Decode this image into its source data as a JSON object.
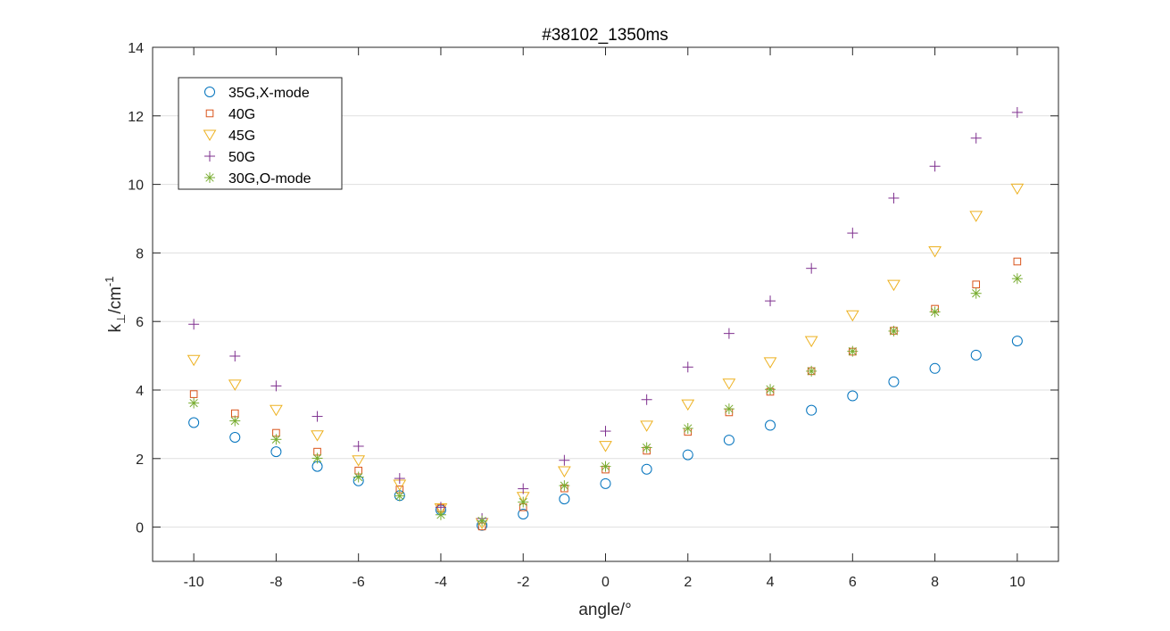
{
  "chart_data": {
    "type": "scatter",
    "title": "#38102_1350ms",
    "xlabel": "angle/°",
    "ylabel_base": "k",
    "ylabel_sub": "⊥",
    "ylabel_unit": "/cm",
    "ylabel_sup": "-1",
    "xlim": [
      -11,
      11
    ],
    "ylim": [
      -1,
      14
    ],
    "xticks": [
      -10,
      -8,
      -6,
      -4,
      -2,
      0,
      2,
      4,
      6,
      8,
      10
    ],
    "yticks": [
      0,
      2,
      4,
      6,
      8,
      10,
      12,
      14
    ],
    "grid": "y-major",
    "legend_position": "top-left",
    "x": [
      -10,
      -9,
      -8,
      -7,
      -6,
      -5,
      -4,
      -3,
      -2,
      -1,
      0,
      1,
      2,
      3,
      4,
      5,
      6,
      7,
      8,
      9,
      10
    ],
    "series": [
      {
        "name": "35G,X-mode",
        "marker": "circle",
        "color": "#0072BD",
        "values": [
          3.05,
          2.62,
          2.2,
          1.77,
          1.35,
          0.92,
          0.5,
          0.05,
          0.38,
          0.82,
          1.27,
          1.69,
          2.11,
          2.54,
          2.97,
          3.41,
          3.83,
          4.24,
          4.63,
          5.02,
          5.43
        ]
      },
      {
        "name": "40G",
        "marker": "square",
        "color": "#D95319",
        "values": [
          3.88,
          3.32,
          2.75,
          2.2,
          1.65,
          1.1,
          0.55,
          0.02,
          0.58,
          1.13,
          1.68,
          2.23,
          2.78,
          3.35,
          3.95,
          4.55,
          5.12,
          5.73,
          6.37,
          7.08,
          7.75
        ]
      },
      {
        "name": "45G",
        "marker": "triangle-down",
        "color": "#EDB120",
        "values": [
          4.88,
          4.16,
          3.42,
          2.68,
          1.95,
          1.24,
          0.55,
          0.12,
          0.88,
          1.63,
          2.37,
          2.96,
          3.58,
          4.19,
          4.81,
          5.43,
          6.18,
          7.07,
          8.05,
          9.08,
          9.88
        ]
      },
      {
        "name": "50G",
        "marker": "plus",
        "color": "#7E2F8E",
        "values": [
          5.92,
          4.99,
          4.12,
          3.23,
          2.36,
          1.42,
          0.58,
          0.25,
          1.12,
          1.95,
          2.8,
          3.72,
          4.67,
          5.65,
          6.6,
          7.55,
          8.58,
          9.6,
          10.53,
          11.35,
          12.1
        ]
      },
      {
        "name": "30G,O-mode",
        "marker": "asterisk",
        "color": "#77AC30",
        "values": [
          3.62,
          3.1,
          2.56,
          2.01,
          1.46,
          0.91,
          0.36,
          0.18,
          0.73,
          1.21,
          1.77,
          2.32,
          2.88,
          3.45,
          4.02,
          4.55,
          5.13,
          5.72,
          6.28,
          6.82,
          7.25
        ]
      }
    ]
  }
}
